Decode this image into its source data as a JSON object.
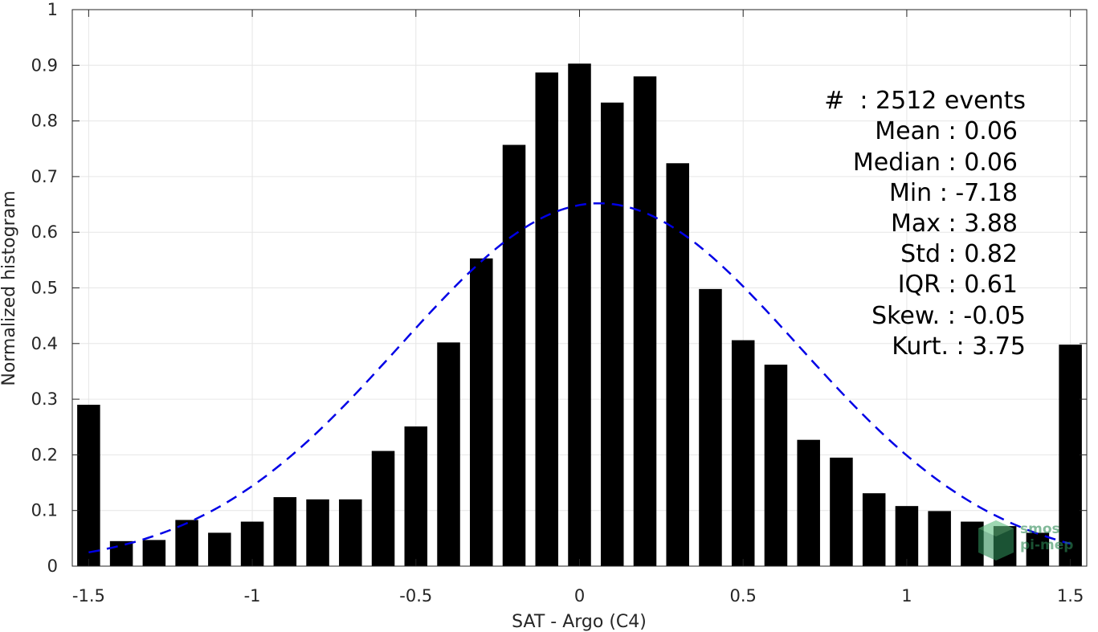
{
  "chart_data": {
    "type": "bar",
    "xlabel": "SAT - Argo (C4)",
    "ylabel": "Normalized histogram",
    "xlim": [
      -1.55,
      1.55
    ],
    "ylim": [
      0,
      1
    ],
    "grid": true,
    "x_ticks": [
      -1.5,
      -1,
      -0.5,
      0,
      0.5,
      1,
      1.5
    ],
    "x_tick_labels": [
      "-1.5",
      "-1",
      "-0.5",
      "0",
      "0.5",
      "1",
      "1.5"
    ],
    "y_ticks": [
      0,
      0.1,
      0.2,
      0.3,
      0.4,
      0.5,
      0.6,
      0.7,
      0.8,
      0.9,
      1
    ],
    "y_tick_labels": [
      "0",
      "0.1",
      "0.2",
      "0.3",
      "0.4",
      "0.5",
      "0.6",
      "0.7",
      "0.8",
      "0.9",
      "1"
    ],
    "bar_width": 0.07,
    "bars": [
      {
        "x": -1.5,
        "value": 0.29
      },
      {
        "x": -1.4,
        "value": 0.045
      },
      {
        "x": -1.3,
        "value": 0.047
      },
      {
        "x": -1.2,
        "value": 0.083
      },
      {
        "x": -1.1,
        "value": 0.06
      },
      {
        "x": -1.0,
        "value": 0.08
      },
      {
        "x": -0.9,
        "value": 0.124
      },
      {
        "x": -0.8,
        "value": 0.12
      },
      {
        "x": -0.7,
        "value": 0.12
      },
      {
        "x": -0.6,
        "value": 0.207
      },
      {
        "x": -0.5,
        "value": 0.251
      },
      {
        "x": -0.4,
        "value": 0.402
      },
      {
        "x": -0.3,
        "value": 0.553
      },
      {
        "x": -0.2,
        "value": 0.757
      },
      {
        "x": -0.1,
        "value": 0.887
      },
      {
        "x": 0.0,
        "value": 0.903
      },
      {
        "x": 0.1,
        "value": 0.833
      },
      {
        "x": 0.2,
        "value": 0.88
      },
      {
        "x": 0.3,
        "value": 0.724
      },
      {
        "x": 0.4,
        "value": 0.498
      },
      {
        "x": 0.5,
        "value": 0.406
      },
      {
        "x": 0.6,
        "value": 0.362
      },
      {
        "x": 0.7,
        "value": 0.227
      },
      {
        "x": 0.8,
        "value": 0.195
      },
      {
        "x": 0.9,
        "value": 0.131
      },
      {
        "x": 1.0,
        "value": 0.108
      },
      {
        "x": 1.1,
        "value": 0.099
      },
      {
        "x": 1.2,
        "value": 0.08
      },
      {
        "x": 1.3,
        "value": 0.072
      },
      {
        "x": 1.4,
        "value": 0.06
      },
      {
        "x": 1.5,
        "value": 0.398
      }
    ],
    "fit_curve": {
      "type": "gaussian",
      "mean": 0.06,
      "std": 0.61,
      "peak": 0.652,
      "x_range": [
        -1.5,
        1.5
      ],
      "style": "dashed",
      "color": "#0000e6"
    },
    "bar_color": "#000000",
    "grid_color": "#e6e6e6"
  },
  "stats": {
    "lines": [
      "#  : 2512 events",
      "Mean : 0.06",
      "Median : 0.06",
      "Min : -7.18",
      "Max : 3.88",
      "Std : 0.82",
      "IQR : 0.61",
      "Skew. : -0.05",
      "Kurt. : 3.75"
    ]
  },
  "watermark": {
    "line1": "smos",
    "line2": "pi-mep",
    "color": "#2e8b57"
  }
}
